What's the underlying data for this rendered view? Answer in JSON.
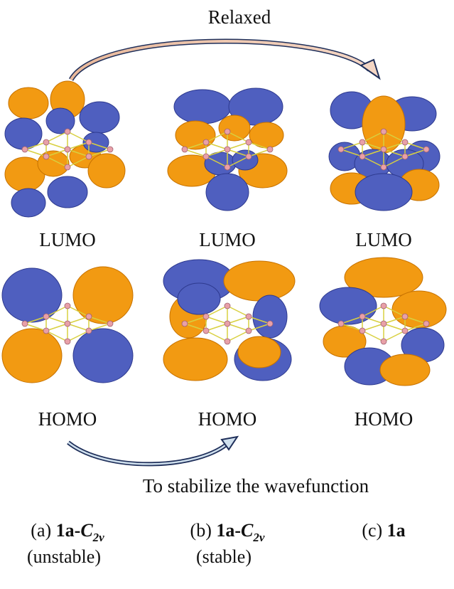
{
  "title_top": "Relaxed",
  "bottom_note": "To stabilize the wavefunction",
  "panels": [
    {
      "lumo": "LUMO",
      "homo": "HOMO",
      "caption": {
        "letter": "(a)",
        "compound": "1a-",
        "symbol": "C",
        "subscript": "2v",
        "state": "(unstable)"
      }
    },
    {
      "lumo": "LUMO",
      "homo": "HOMO",
      "caption": {
        "letter": "(b)",
        "compound": "1a-",
        "symbol": "C",
        "subscript": "2v",
        "state": "(stable)"
      }
    },
    {
      "lumo": "LUMO",
      "homo": "HOMO",
      "caption": {
        "letter": "(c)",
        "compound": "1a"
      }
    }
  ]
}
